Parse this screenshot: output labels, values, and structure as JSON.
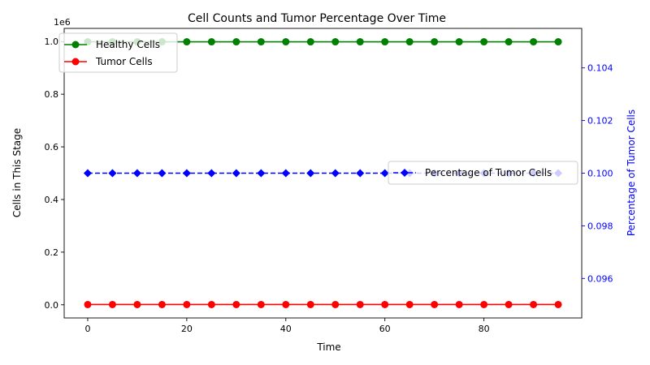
{
  "chart_data": {
    "type": "line",
    "title": "Cell Counts and Tumor Percentage Over Time",
    "xlabel": "Time",
    "ylabel_left": "Cells in This Stage",
    "ylabel_right": "Percentage of Tumor Cells",
    "left_axis_multiplier": "1e6",
    "x": [
      0,
      5,
      10,
      15,
      20,
      25,
      30,
      35,
      40,
      45,
      50,
      55,
      60,
      65,
      70,
      75,
      80,
      85,
      90,
      95
    ],
    "xlim": [
      -4.75,
      99.75
    ],
    "ylim_left": [
      -0.05,
      1.05
    ],
    "ylim_right": [
      0.0945,
      0.1055
    ],
    "x_ticks": [
      0,
      20,
      40,
      60,
      80
    ],
    "y_left_ticks": [
      "0.0",
      "0.2",
      "0.4",
      "0.6",
      "0.8",
      "1.0"
    ],
    "y_left_tick_values": [
      0.0,
      0.2,
      0.4,
      0.6,
      0.8,
      1.0
    ],
    "y_right_ticks": [
      "0.096",
      "0.098",
      "0.100",
      "0.102",
      "0.104"
    ],
    "y_right_tick_values": [
      0.096,
      0.098,
      0.1,
      0.102,
      0.104
    ],
    "right_axis_color": "#0000ff",
    "series": [
      {
        "name": "Healthy Cells",
        "axis": "left",
        "color": "#008000",
        "marker": "circle",
        "dash": "solid",
        "values": [
          999000,
          999000,
          999000,
          999000,
          999000,
          999000,
          999000,
          999000,
          999000,
          999000,
          999000,
          999000,
          999000,
          999000,
          999000,
          999000,
          999000,
          999000,
          999000,
          999000
        ]
      },
      {
        "name": "Tumor Cells",
        "axis": "left",
        "color": "#ff0000",
        "marker": "circle",
        "dash": "solid",
        "values": [
          1000,
          1000,
          1000,
          1000,
          1000,
          1000,
          1000,
          1000,
          1000,
          1000,
          1000,
          1000,
          1000,
          1000,
          1000,
          1000,
          1000,
          1000,
          1000,
          1000
        ]
      },
      {
        "name": "Percentage of Tumor Cells",
        "axis": "right",
        "color": "#0000ff",
        "marker": "diamond",
        "dash": "dashed",
        "values": [
          0.1,
          0.1,
          0.1,
          0.1,
          0.1,
          0.1,
          0.1,
          0.1,
          0.1,
          0.1,
          0.1,
          0.1,
          0.1,
          0.1,
          0.1,
          0.1,
          0.1,
          0.1,
          0.1,
          0.1
        ]
      }
    ],
    "legend_left_placement": "upper-left",
    "legend_right_placement": "center-right",
    "grid": false
  }
}
